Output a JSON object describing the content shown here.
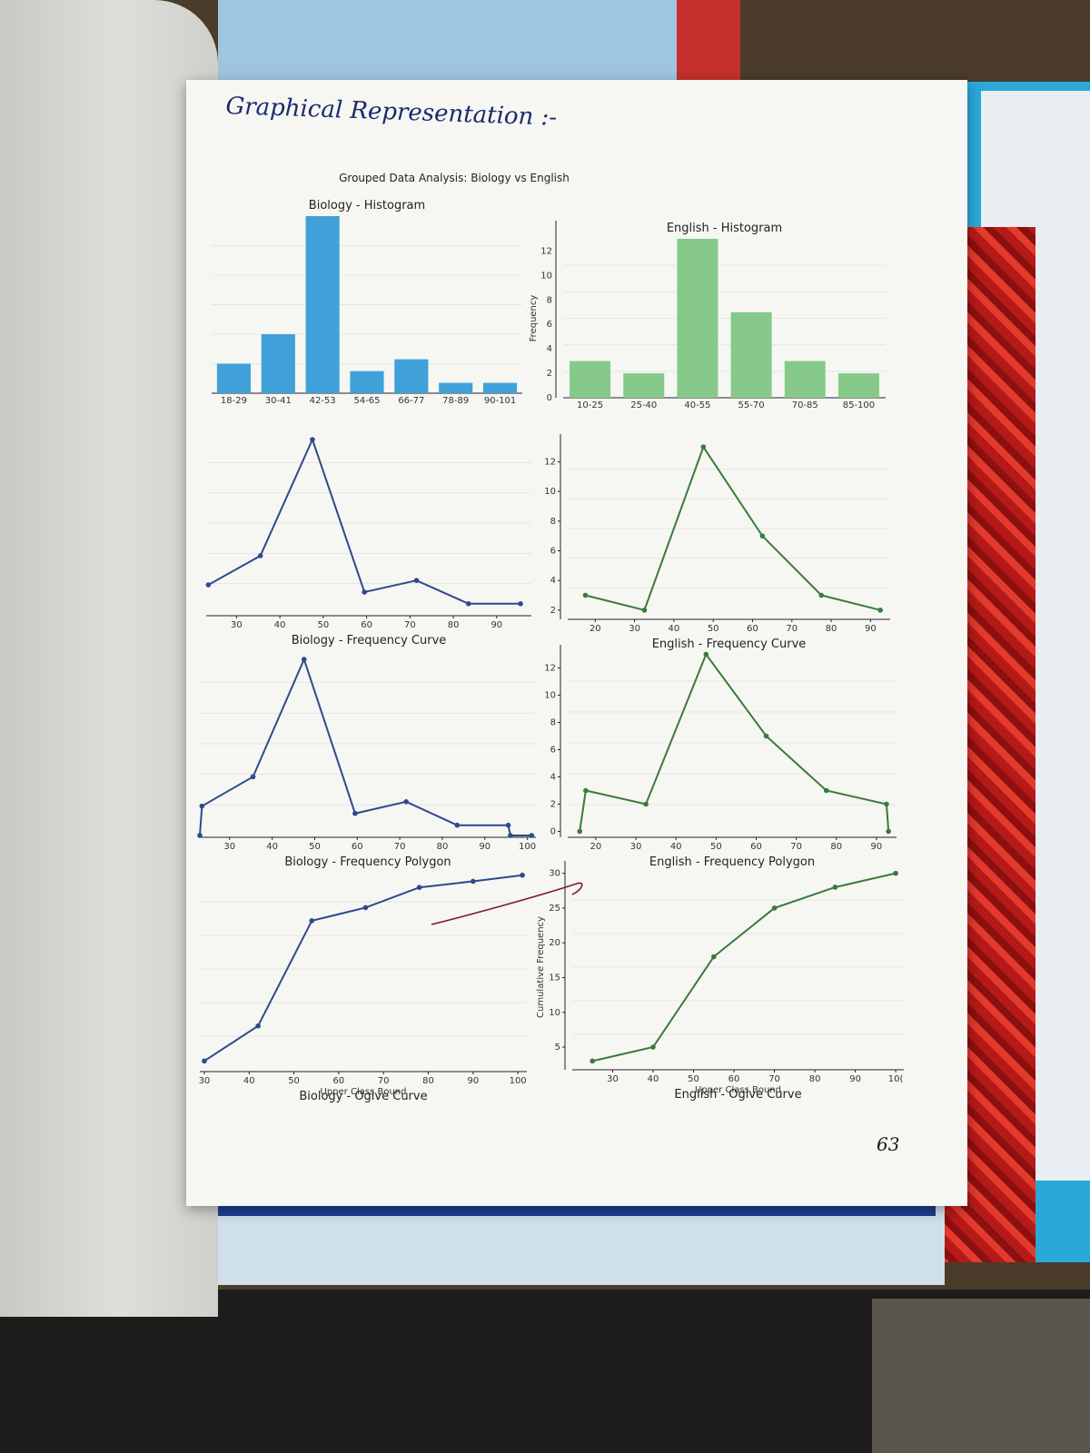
{
  "handwritten_title": "Graphical Representation :-",
  "page_number": "63",
  "chart_data": [
    {
      "id": "main-title",
      "type": "text",
      "title": "Grouped Data Analysis: Biology vs English"
    },
    {
      "id": "bio-hist",
      "type": "bar",
      "title": "Biology - Histogram",
      "categories": [
        "18-29",
        "30-41",
        "42-53",
        "54-65",
        "66-77",
        "78-89",
        "90-101"
      ],
      "values": [
        2,
        4,
        12,
        1.5,
        2.3,
        0.7,
        0.7
      ],
      "color": "#3fa1d8",
      "ylabel": "",
      "ylim": [
        0,
        12
      ]
    },
    {
      "id": "eng-hist",
      "type": "bar",
      "title": "English - Histogram",
      "categories": [
        "10-25",
        "25-40",
        "40-55",
        "55-70",
        "70-85",
        "85-100"
      ],
      "values": [
        3,
        2,
        13,
        7,
        3,
        2
      ],
      "color": "#86c98a",
      "ylabel": "Frequency",
      "yticks": [
        0,
        2,
        4,
        6,
        8,
        10,
        12
      ],
      "ylim": [
        0,
        13
      ]
    },
    {
      "id": "bio-curve",
      "type": "line",
      "title": "Biology - Frequency Curve",
      "x": [
        23.5,
        35.5,
        47.5,
        59.5,
        71.5,
        83.5,
        95.5
      ],
      "y": [
        2,
        4,
        12,
        1.5,
        2.3,
        0.7,
        0.7
      ],
      "xticks": [
        30,
        40,
        50,
        60,
        70,
        80,
        90
      ],
      "xlim": [
        23,
        98
      ],
      "ylim": [
        0,
        12.5
      ],
      "color": "#2e4a8a"
    },
    {
      "id": "eng-curve",
      "type": "line",
      "title": "English - Frequency Curve",
      "x": [
        17.5,
        32.5,
        47.5,
        62.5,
        77.5,
        92.5
      ],
      "y": [
        3,
        2,
        13,
        7,
        3,
        2
      ],
      "xticks": [
        20,
        30,
        40,
        50,
        60,
        70,
        80,
        90
      ],
      "yticks": [
        2,
        4,
        6,
        8,
        10,
        12
      ],
      "xlim": [
        13,
        95
      ],
      "ylim": [
        1.5,
        13.5
      ],
      "color": "#3b7a3b"
    },
    {
      "id": "bio-poly",
      "type": "line",
      "title": "Biology - Frequency Polygon",
      "x": [
        23,
        23.5,
        35.5,
        47.5,
        59.5,
        71.5,
        83.5,
        95.5,
        96,
        101
      ],
      "y": [
        0,
        2,
        4,
        12,
        1.5,
        2.3,
        0.7,
        0.7,
        0,
        0
      ],
      "xticks": [
        30,
        40,
        50,
        60,
        70,
        80,
        90,
        100
      ],
      "xlim": [
        23,
        102
      ],
      "ylim": [
        0,
        12.5
      ],
      "color": "#2e4a8a"
    },
    {
      "id": "eng-poly",
      "type": "line",
      "title": "English - Frequency Polygon",
      "x": [
        16,
        17.5,
        32.5,
        47.5,
        62.5,
        77.5,
        92.5,
        93
      ],
      "y": [
        0,
        3,
        2,
        13,
        7,
        3,
        2,
        0
      ],
      "xticks": [
        20,
        30,
        40,
        50,
        60,
        70,
        80,
        90
      ],
      "yticks": [
        0,
        2,
        4,
        6,
        8,
        10,
        12
      ],
      "xlim": [
        13,
        95
      ],
      "ylim": [
        -0.3,
        13.3
      ],
      "color": "#3b7a3b"
    },
    {
      "id": "bio-ogive",
      "type": "line",
      "title": "Biology - Ogive Curve",
      "x": [
        30,
        42,
        54,
        66,
        78,
        90,
        101
      ],
      "y": [
        2,
        6,
        18,
        19.5,
        21.8,
        22.5,
        23.2
      ],
      "xticks": [
        30,
        40,
        50,
        60,
        70,
        80,
        90,
        100
      ],
      "xlabel": "Upper Class Bound",
      "xlim": [
        29,
        102
      ],
      "ylim": [
        1,
        24
      ],
      "color": "#2e4a8a"
    },
    {
      "id": "eng-ogive",
      "type": "line",
      "title": "English - Ogive Curve",
      "x": [
        25,
        40,
        55,
        70,
        85,
        100
      ],
      "y": [
        3,
        5,
        18,
        25,
        28,
        30
      ],
      "xticks": [
        30,
        40,
        50,
        60,
        70,
        80,
        90,
        "10("
      ],
      "yticks": [
        5,
        10,
        15,
        20,
        25,
        30
      ],
      "xlabel": "Upper Class Bound",
      "ylabel": "Cumulative Frequency",
      "xlim": [
        20,
        102
      ],
      "ylim": [
        2,
        31
      ],
      "color": "#3b7a3b"
    }
  ]
}
